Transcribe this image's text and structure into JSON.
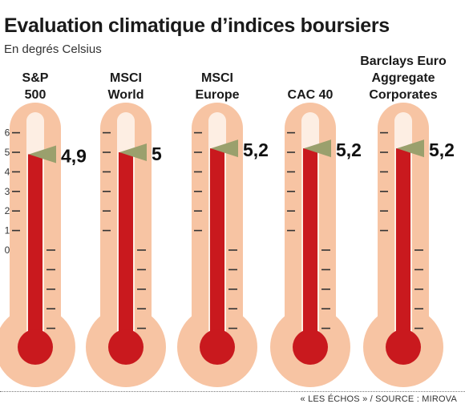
{
  "title": "Evaluation climatique d’indices boursiers",
  "subtitle": "En degrés Celsius",
  "source": "« LES ÉCHOS » / SOURCE : MIROVA",
  "colors": {
    "tube_outer": "#f7c4a3",
    "tube_inner": "#fdeee3",
    "mercury": "#c9191e",
    "pointer": "#9aa06d",
    "ticks": "#333333"
  },
  "chart_data": {
    "type": "bar",
    "title": "Evaluation climatique d’indices boursiers",
    "subtitle": "En degrés Celsius",
    "ylabel": "",
    "ylim": [
      -4,
      6
    ],
    "yticks": [
      0,
      1,
      2,
      3,
      4,
      5,
      6
    ],
    "categories": [
      [
        "S&P",
        "500"
      ],
      [
        "MSCI",
        "World"
      ],
      [
        "MSCI",
        "Europe"
      ],
      [
        "CAC 40"
      ],
      [
        "Barclays Euro",
        "Aggregate",
        "Corporates"
      ]
    ],
    "values": [
      4.9,
      5,
      5.2,
      5.2,
      5.2
    ],
    "value_labels": [
      "4,9",
      "5",
      "5,2",
      "5,2",
      "5,2"
    ]
  }
}
